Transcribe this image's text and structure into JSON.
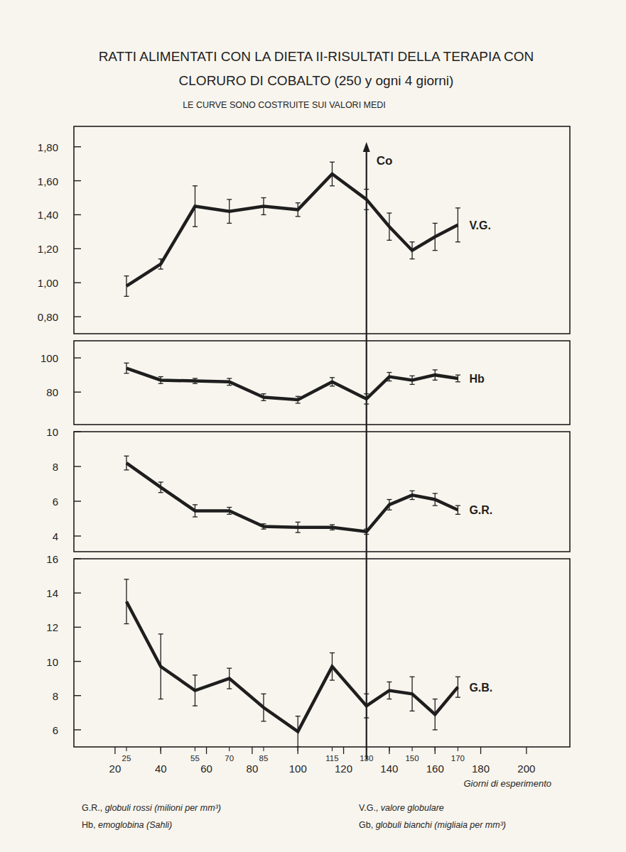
{
  "header": {
    "title": [
      "RATTI ALIMENTATI CON LA DIETA II-RISULTATI DELLA TERAPIA CON",
      "CLORURO DI COBALTO  (250 y ogni 4 giorni)"
    ],
    "subtitle": "LE CURVE SONO COSTRUITE SUI VALORI MEDI"
  },
  "chart_data": [
    {
      "type": "line",
      "x": [
        25,
        40,
        55,
        70,
        85,
        100,
        115,
        130,
        140,
        150,
        160,
        170
      ],
      "xlim": [
        2,
        219
      ],
      "ylim": [
        0.7,
        1.92
      ],
      "yticks": [
        {
          "value": 0.8,
          "label": "0,80"
        },
        {
          "value": 1.0,
          "label": "1,00"
        },
        {
          "value": 1.2,
          "label": "1,20"
        },
        {
          "value": 1.4,
          "label": "1,40"
        },
        {
          "value": 1.6,
          "label": "1,60"
        },
        {
          "value": 1.8,
          "label": "1,80"
        }
      ],
      "tick_labels": "y",
      "annotations": [
        {
          "x": 130,
          "text": "Co"
        }
      ],
      "series": [
        {
          "name": "V.G.",
          "color": "#1e1e1e",
          "values": [
            0.98,
            1.11,
            1.45,
            1.42,
            1.45,
            1.43,
            1.64,
            1.49,
            1.33,
            1.19,
            1.27,
            1.34
          ],
          "errors": [
            0.06,
            0.03,
            0.12,
            0.07,
            0.05,
            0.04,
            0.07,
            0.06,
            0.08,
            0.05,
            0.08,
            0.1
          ]
        }
      ]
    },
    {
      "type": "line",
      "x": [
        25,
        40,
        55,
        70,
        85,
        100,
        115,
        130,
        140,
        150,
        160,
        170
      ],
      "xlim": [
        2,
        219
      ],
      "ylim": [
        61,
        110
      ],
      "yticks": [
        80,
        100
      ],
      "tick_labels": "y",
      "series": [
        {
          "name": "Hb",
          "color": "#1e1e1e",
          "values": [
            94,
            87,
            86.5,
            86,
            77,
            75.5,
            86,
            76,
            89,
            87,
            90,
            88
          ],
          "errors": [
            3,
            2,
            1.5,
            2,
            2,
            2,
            2.5,
            3,
            2.5,
            2.5,
            3,
            2
          ]
        }
      ]
    },
    {
      "type": "line",
      "x": [
        25,
        40,
        55,
        70,
        85,
        100,
        115,
        130,
        140,
        150,
        160,
        170
      ],
      "xlim": [
        2,
        219
      ],
      "ylim": [
        3.1,
        10
      ],
      "yticks": [
        4,
        6,
        8,
        10
      ],
      "tick_labels": "y",
      "series": [
        {
          "name": "G.R.",
          "color": "#1e1e1e",
          "values": [
            8.2,
            6.8,
            5.45,
            5.45,
            4.55,
            4.5,
            4.5,
            4.25,
            5.8,
            6.35,
            6.1,
            5.5
          ],
          "errors": [
            0.4,
            0.3,
            0.35,
            0.2,
            0.15,
            0.3,
            0.15,
            0.15,
            0.3,
            0.25,
            0.35,
            0.25
          ]
        }
      ]
    },
    {
      "type": "line",
      "x": [
        25,
        40,
        55,
        70,
        85,
        100,
        115,
        130,
        140,
        150,
        160,
        170
      ],
      "xlim": [
        2,
        219
      ],
      "ylim": [
        5,
        16
      ],
      "yticks": [
        6,
        8,
        10,
        12,
        14,
        16
      ],
      "xticks": [
        20,
        40,
        60,
        80,
        100,
        120,
        140,
        160,
        180,
        200
      ],
      "x_label": "Giorni di esperimento",
      "series": [
        {
          "name": "G.B.",
          "color": "#1e1e1e",
          "values": [
            13.5,
            9.7,
            8.3,
            9.0,
            7.3,
            5.9,
            9.7,
            7.4,
            8.3,
            8.1,
            6.9,
            8.5
          ],
          "errors": [
            1.3,
            1.9,
            0.9,
            0.6,
            0.8,
            0.9,
            0.8,
            0.7,
            0.5,
            1.0,
            0.9,
            0.6
          ]
        }
      ]
    }
  ],
  "footer": [
    {
      "abbr": "G.R.,",
      "text": "globuli rossi (milioni per mm³)"
    },
    {
      "abbr": "Hb,",
      "text": "emoglobina (Sahli)"
    },
    {
      "abbr": "V.G.,",
      "text": "valore globulare"
    },
    {
      "abbr": "Gb,",
      "text": "globuli bianchi (migliaia per mm³)"
    }
  ]
}
